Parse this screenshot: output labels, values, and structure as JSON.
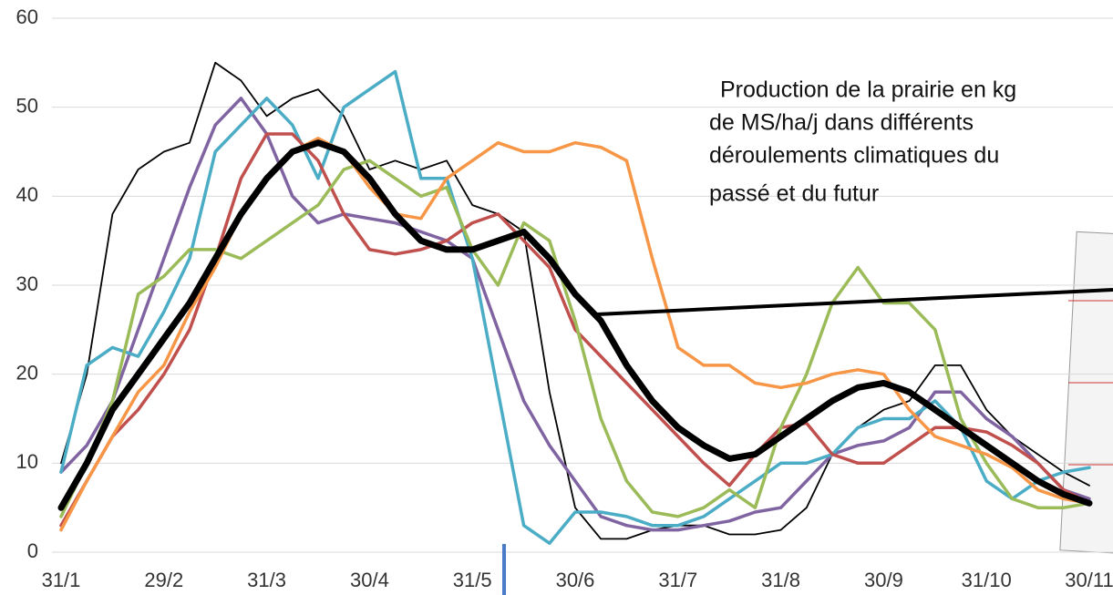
{
  "chart_data": {
    "type": "line",
    "annotation": [
      "Production de la prairie en kg",
      "de MS/ha/j dans différents",
      "déroulements climatiques du",
      "passé et du futur"
    ],
    "categories": [
      "31/1",
      null,
      null,
      null,
      "29/2",
      null,
      null,
      null,
      "31/3",
      null,
      null,
      null,
      "30/4",
      null,
      null,
      null,
      "31/5",
      null,
      null,
      null,
      "30/6",
      null,
      null,
      null,
      "31/7",
      null,
      null,
      null,
      "31/8",
      null,
      null,
      null,
      "30/9",
      null,
      null,
      null,
      "31/10",
      null,
      null,
      null,
      "30/11"
    ],
    "ylim": [
      0,
      60
    ],
    "yticks": [
      0,
      10,
      20,
      30,
      40,
      50,
      60
    ],
    "grid": true,
    "series": [
      {
        "color": "#000000",
        "width": 1.8,
        "values": [
          10,
          20,
          38,
          43,
          45,
          46,
          55,
          53,
          49,
          51,
          52,
          49,
          43,
          44,
          43,
          44,
          39,
          38,
          36,
          18,
          5,
          1.5,
          1.5,
          2.5,
          3,
          3,
          2,
          2,
          2.5,
          5,
          11,
          14,
          16,
          17,
          21,
          21,
          16,
          13,
          11,
          9,
          7.5
        ]
      },
      {
        "color": "#8064a2",
        "width": 3.5,
        "values": [
          9,
          12,
          17,
          25,
          33,
          41,
          48,
          51,
          47,
          40,
          37,
          38,
          37.5,
          37,
          36,
          35,
          33,
          25,
          17,
          12,
          8,
          4,
          3,
          2.5,
          2.5,
          3,
          3.5,
          4.5,
          5,
          8,
          11,
          12,
          12.5,
          14,
          18,
          18,
          15,
          13,
          10,
          7,
          6
        ]
      },
      {
        "color": "#4bacc6",
        "width": 3.5,
        "values": [
          9,
          21,
          23,
          22,
          27,
          33,
          45,
          48,
          51,
          48,
          42,
          50,
          52,
          54,
          42,
          42,
          33,
          18,
          3,
          1,
          4.5,
          4.5,
          4,
          3,
          3,
          4,
          6,
          8,
          10,
          10,
          11,
          14,
          15,
          15,
          17,
          14,
          8,
          6,
          8,
          9,
          9.5
        ]
      },
      {
        "color": "#c0504d",
        "width": 3.5,
        "values": [
          3,
          8,
          13,
          16,
          20,
          25,
          33,
          42,
          47,
          47,
          44,
          38,
          34,
          33.5,
          34,
          35,
          37,
          38,
          35,
          32,
          25,
          22,
          19,
          16,
          13,
          10,
          7.5,
          11,
          14,
          14.5,
          11,
          10,
          10,
          12,
          14,
          14,
          13.5,
          12,
          10,
          7,
          5.5
        ]
      },
      {
        "color": "#9bbb59",
        "width": 3.5,
        "values": [
          4,
          10,
          17,
          29,
          31,
          34,
          34,
          33,
          35,
          37,
          39,
          43,
          44,
          42,
          40,
          41,
          34,
          30,
          37,
          35,
          26,
          15,
          8,
          4.5,
          4,
          5,
          7,
          5,
          14,
          20,
          28,
          32,
          28,
          28,
          25,
          15,
          10,
          6,
          5,
          5,
          5.5
        ]
      },
      {
        "color": "#f79646",
        "width": 3.5,
        "values": [
          2.5,
          8,
          13,
          18,
          21,
          27,
          32,
          38,
          42,
          45,
          46.5,
          45,
          41,
          38,
          37.5,
          42,
          44,
          46,
          45,
          45,
          46,
          45.5,
          44,
          33,
          23,
          21,
          21,
          19,
          18.5,
          19,
          20,
          20.5,
          20,
          16,
          13,
          12,
          11,
          9.5,
          7,
          6,
          5.5
        ]
      },
      {
        "color": "#000000",
        "width": 7,
        "values": [
          5,
          10,
          16,
          20,
          24,
          28,
          33,
          38,
          42,
          45,
          46,
          45,
          42,
          38,
          35,
          34,
          34,
          35,
          36,
          33,
          29,
          26,
          21,
          17,
          14,
          12,
          10.5,
          11,
          13,
          15,
          17,
          18.5,
          19,
          18,
          16,
          14,
          12,
          10,
          8,
          6.5,
          5.5
        ]
      }
    ]
  }
}
